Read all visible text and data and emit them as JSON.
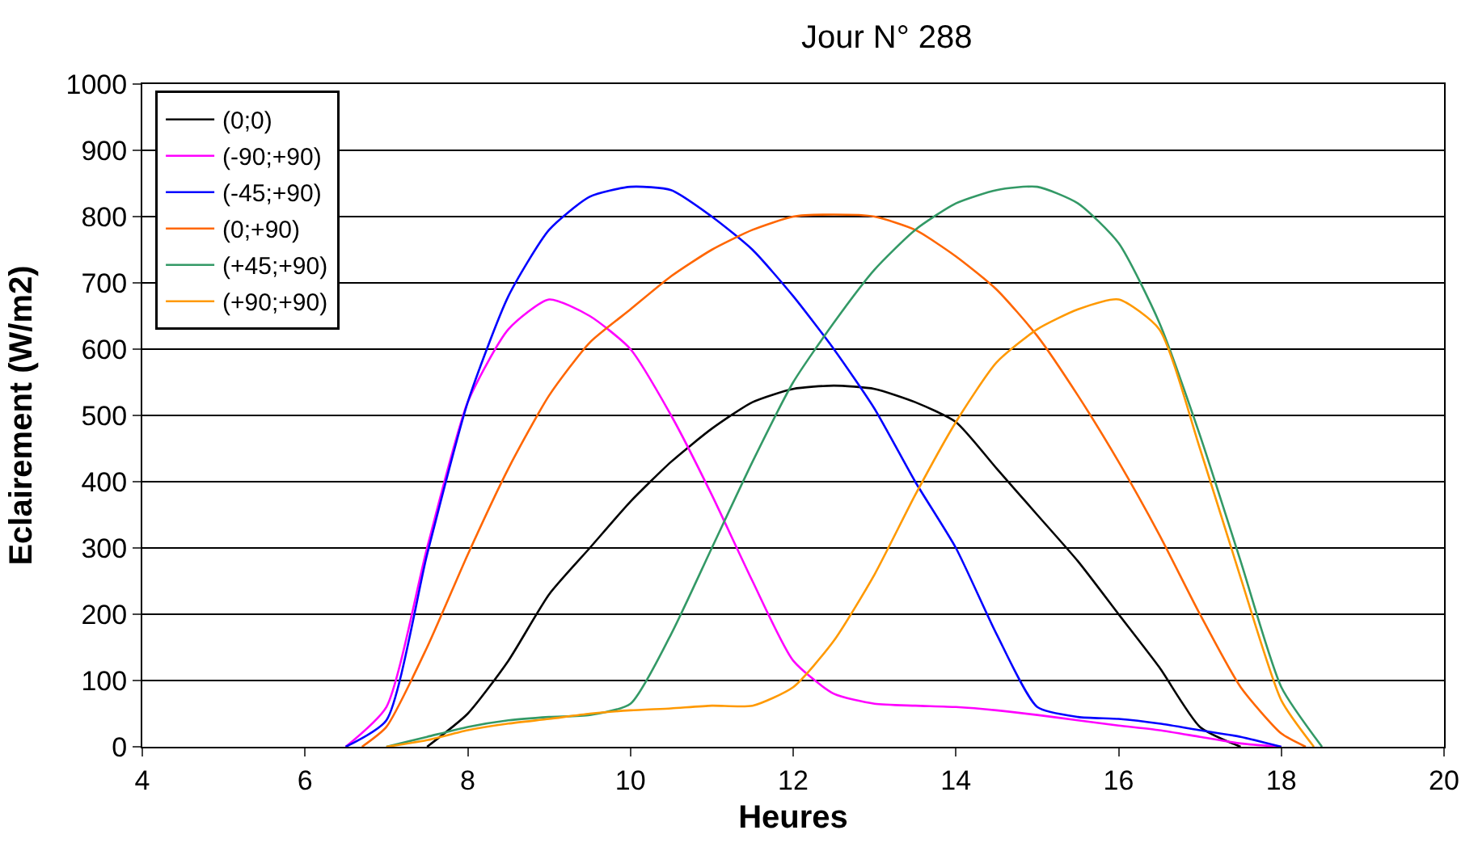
{
  "chart_data": {
    "type": "line",
    "title": "Jour N° 288",
    "xlabel": "Heures",
    "ylabel": "Eclairement (W/m2)",
    "xlim": [
      4,
      20
    ],
    "xticks": [
      4,
      6,
      8,
      10,
      12,
      14,
      16,
      18,
      20
    ],
    "ylim": [
      0,
      1000
    ],
    "yticks": [
      0,
      100,
      200,
      300,
      400,
      500,
      600,
      700,
      800,
      900,
      1000
    ],
    "grid": "y",
    "legend": "top left",
    "marker": "none",
    "line_style": "solid",
    "series": [
      {
        "name": "(0;0)",
        "color": "#000000",
        "x": [
          7.5,
          8,
          8.5,
          9,
          9.5,
          10,
          10.5,
          11,
          11.5,
          12,
          12.5,
          13,
          13.5,
          14,
          14.5,
          15,
          15.5,
          16,
          16.5,
          17,
          17.5
        ],
        "values": [
          0,
          50,
          130,
          230,
          300,
          370,
          430,
          480,
          520,
          540,
          545,
          540,
          520,
          490,
          420,
          350,
          280,
          200,
          120,
          30,
          0
        ]
      },
      {
        "name": "(-90;+90)",
        "color": "#ff00ff",
        "x": [
          6.5,
          7,
          7.5,
          8,
          8.5,
          9,
          9.5,
          10,
          10.5,
          11,
          11.5,
          12,
          12.5,
          13,
          13.5,
          14,
          14.5,
          15,
          15.5,
          16,
          16.5,
          17,
          17.5,
          18
        ],
        "values": [
          0,
          60,
          300,
          520,
          630,
          675,
          650,
          600,
          500,
          380,
          250,
          130,
          80,
          65,
          62,
          60,
          55,
          48,
          40,
          32,
          25,
          15,
          5,
          0
        ]
      },
      {
        "name": "(-45;+90)",
        "color": "#0000ff",
        "x": [
          6.5,
          7,
          7.5,
          8,
          8.5,
          9,
          9.5,
          10,
          10.5,
          11,
          11.5,
          12,
          12.5,
          13,
          13.5,
          14,
          14.5,
          15,
          15.5,
          16,
          16.5,
          17,
          17.5,
          18
        ],
        "values": [
          0,
          40,
          290,
          520,
          680,
          780,
          830,
          845,
          840,
          800,
          750,
          680,
          600,
          510,
          400,
          300,
          170,
          60,
          45,
          42,
          35,
          25,
          15,
          0
        ]
      },
      {
        "name": "(0;+90)",
        "color": "#ff6600",
        "x": [
          6.7,
          7,
          7.5,
          8,
          8.5,
          9,
          9.5,
          10,
          10.5,
          11,
          11.5,
          12,
          12.5,
          13,
          13.5,
          14,
          14.5,
          15,
          15.5,
          16,
          16.5,
          17,
          17.5,
          18,
          18.3
        ],
        "values": [
          0,
          30,
          150,
          290,
          420,
          530,
          610,
          660,
          710,
          750,
          780,
          800,
          803,
          800,
          780,
          740,
          690,
          620,
          530,
          430,
          320,
          200,
          90,
          20,
          0
        ]
      },
      {
        "name": "(+45;+90)",
        "color": "#339966",
        "x": [
          7,
          7.5,
          8,
          8.5,
          9,
          9.5,
          10,
          10.5,
          11,
          11.5,
          12,
          12.5,
          13,
          13.5,
          14,
          14.5,
          15,
          15.5,
          16,
          16.5,
          17,
          17.5,
          18,
          18.5
        ],
        "values": [
          0,
          15,
          30,
          40,
          45,
          48,
          65,
          170,
          300,
          430,
          550,
          640,
          720,
          780,
          820,
          840,
          845,
          820,
          760,
          640,
          470,
          280,
          90,
          0
        ]
      },
      {
        "name": "(+90;+90)",
        "color": "#ff9900",
        "x": [
          7,
          7.5,
          8,
          8.5,
          9,
          9.5,
          10,
          10.5,
          11,
          11.5,
          12,
          12.5,
          13,
          13.5,
          14,
          14.5,
          15,
          15.5,
          16,
          16.5,
          17,
          17.5,
          18,
          18.4
        ],
        "values": [
          0,
          10,
          25,
          35,
          42,
          50,
          55,
          58,
          62,
          62,
          90,
          160,
          260,
          380,
          490,
          580,
          630,
          660,
          675,
          630,
          450,
          255,
          70,
          0
        ]
      }
    ]
  }
}
